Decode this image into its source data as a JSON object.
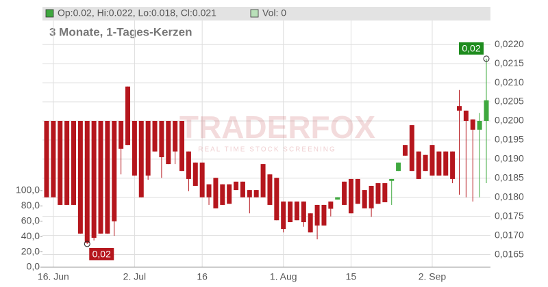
{
  "chart_data": {
    "type": "candlestick",
    "legend_text": "Op:0.02, Hi:0.022, Lo:0.018, Cl:0.021",
    "volume_text": "Vol: 0",
    "subtitle": "3 Monate, 1-Tages-Kerzen",
    "watermark": "TRADERFOX",
    "watermark_tagline": "REAL TIME STOCK SCREENING",
    "low_label": "0,02",
    "high_label": "0,02",
    "up_color": "#3ea83e",
    "down_color": "#b5161d",
    "grid": true,
    "categories": [
      null,
      "16. Jun",
      null,
      null,
      null,
      null,
      null,
      null,
      null,
      null,
      null,
      null,
      null,
      "2. Jul",
      null,
      null,
      null,
      null,
      null,
      null,
      null,
      null,
      null,
      "16",
      null,
      null,
      null,
      null,
      null,
      null,
      null,
      null,
      null,
      null,
      null,
      "1. Aug",
      null,
      null,
      null,
      null,
      null,
      null,
      null,
      null,
      null,
      "15",
      null,
      null,
      null,
      null,
      null,
      null,
      null,
      null,
      null,
      null,
      null,
      "2. Sep",
      null,
      null,
      null,
      null,
      null,
      null,
      null,
      null
    ],
    "open": [
      0.02,
      0.02,
      0.02,
      0.02,
      0.02,
      0.02,
      0.02,
      0.02,
      0.02,
      0.02,
      0.02,
      0.02,
      0.0209,
      0.02,
      0.02,
      0.02,
      0.02,
      0.02,
      0.02,
      0.02,
      0.02,
      0.0192,
      0.01891,
      0.01891,
      0.01834,
      0.01851,
      0.01834,
      0.01834,
      0.01841,
      0.01841,
      0.01819,
      0.01819,
      0.01887,
      0.0186,
      0.01851,
      0.01789,
      0.01789,
      0.01789,
      0.01789,
      0.01758,
      0.0178,
      0.0178,
      0.01789,
      0.01794,
      0.01841,
      0.01848,
      0.01848,
      0.01819,
      0.0183,
      0.01837,
      0.01837,
      0.01843,
      0.01869,
      0.01937,
      0.01989,
      0.0192,
      0.01911,
      0.01937,
      0.0192,
      0.0192,
      0.0192,
      0.02039,
      0.02027,
      0.02004,
      0.01977,
      0.02
    ],
    "high": [
      0.02,
      0.02,
      0.02,
      0.02,
      0.02,
      0.02,
      0.02,
      0.02,
      0.02,
      0.02,
      0.02,
      0.02,
      0.0209,
      0.02,
      0.02,
      0.02,
      0.02,
      0.02,
      0.02,
      0.02,
      0.02,
      0.0192,
      0.01891,
      0.01891,
      0.01834,
      0.01851,
      0.01834,
      0.01834,
      0.01841,
      0.01841,
      0.01819,
      0.01819,
      0.01887,
      0.0186,
      0.01851,
      0.01789,
      0.01789,
      0.01789,
      0.01789,
      0.01758,
      0.0178,
      0.0178,
      0.01789,
      0.018,
      0.01841,
      0.01848,
      0.01848,
      0.01819,
      0.0183,
      0.01837,
      0.01837,
      0.01848,
      0.01891,
      0.01937,
      0.01989,
      0.0192,
      0.01911,
      0.01937,
      0.0192,
      0.0192,
      0.0192,
      0.02081,
      0.02027,
      0.02004,
      0.02021,
      0.02163
    ],
    "low": [
      0.018,
      0.018,
      0.0178,
      0.0178,
      0.0178,
      0.01705,
      0.01678,
      0.01687,
      0.01705,
      0.01705,
      0.01699,
      0.0186,
      0.01937,
      0.01857,
      0.018,
      0.01846,
      0.0192,
      0.01851,
      0.01887,
      0.01887,
      0.01869,
      0.01816,
      0.0183,
      0.018,
      0.0178,
      0.01771,
      0.0178,
      0.01783,
      0.01819,
      0.018,
      0.01758,
      0.018,
      0.018,
      0.0178,
      0.0174,
      0.01708,
      0.01735,
      0.0174,
      0.01723,
      0.01708,
      0.0169,
      0.01726,
      0.0175,
      0.01794,
      0.0178,
      0.01758,
      0.01783,
      0.01771,
      0.01749,
      0.01783,
      0.01787,
      0.0178,
      0.01869,
      0.01909,
      0.01869,
      0.01848,
      0.01869,
      0.01857,
      0.01857,
      0.01857,
      0.01837,
      0.01807,
      0.018,
      0.01789,
      0.018,
      0.01837
    ],
    "close": [
      0.018,
      0.018,
      0.0178,
      0.0178,
      0.0178,
      0.01705,
      0.01681,
      0.01694,
      0.01705,
      0.01705,
      0.01737,
      0.01927,
      0.01937,
      0.01857,
      0.018,
      0.01857,
      0.0192,
      0.01905,
      0.01887,
      0.0192,
      0.01869,
      0.01848,
      0.0183,
      0.018,
      0.018,
      0.01771,
      0.0178,
      0.01783,
      0.01819,
      0.018,
      0.018,
      0.018,
      0.018,
      0.0178,
      0.0174,
      0.01717,
      0.01735,
      0.0174,
      0.01735,
      0.01708,
      0.01726,
      0.01726,
      0.0177,
      0.018,
      0.0178,
      0.01758,
      0.01783,
      0.01771,
      0.01771,
      0.01783,
      0.01787,
      0.01848,
      0.01891,
      0.01909,
      0.01869,
      0.01848,
      0.01869,
      0.01857,
      0.01857,
      0.01857,
      0.01848,
      0.02027,
      0.02,
      0.01977,
      0.02,
      0.02054
    ],
    "ylim": [
      0.01617,
      0.02263
    ],
    "yticks": [
      {
        "value": 0.0165,
        "label": "0,0165"
      },
      {
        "value": 0.017,
        "label": "0,0170"
      },
      {
        "value": 0.0175,
        "label": "0,0175"
      },
      {
        "value": 0.018,
        "label": "0,0180"
      },
      {
        "value": 0.0185,
        "label": "0,0185"
      },
      {
        "value": 0.019,
        "label": "0,0190"
      },
      {
        "value": 0.0195,
        "label": "0,0195"
      },
      {
        "value": 0.02,
        "label": "0,0200"
      },
      {
        "value": 0.0205,
        "label": "0,0205"
      },
      {
        "value": 0.021,
        "label": "0,0210"
      },
      {
        "value": 0.0215,
        "label": "0,0215"
      },
      {
        "value": 0.022,
        "label": "0,0220"
      }
    ],
    "y2lim": [
      0,
      322
    ],
    "y2ticks": [
      {
        "value": 0,
        "label": "0,0"
      },
      {
        "value": 20,
        "label": "20,0"
      },
      {
        "value": 40,
        "label": "40,0"
      },
      {
        "value": 60,
        "label": "60,0"
      },
      {
        "value": 80,
        "label": "80,0"
      },
      {
        "value": 100,
        "label": "100,0"
      }
    ]
  }
}
